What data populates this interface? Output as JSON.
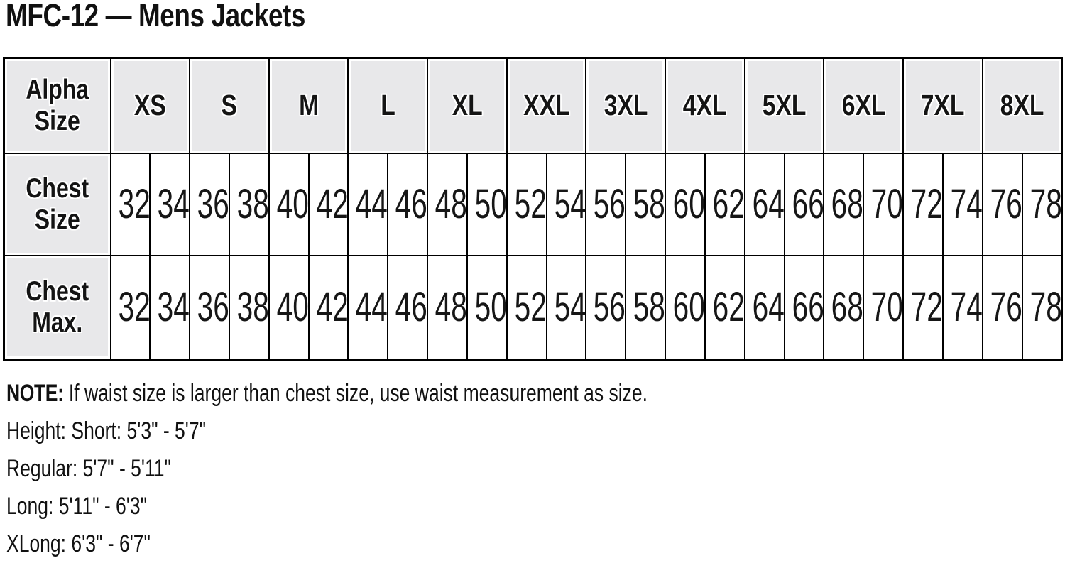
{
  "page": {
    "title": "MFC-12 — Mens Jackets"
  },
  "table": {
    "corner_header": "Alpha Size",
    "chest_size_header": "Chest Size",
    "chest_max_header": "Chest Max.",
    "alpha_sizes": [
      "XS",
      "S",
      "M",
      "L",
      "XL",
      "XXL",
      "3XL",
      "4XL",
      "5XL",
      "6XL",
      "7XL",
      "8XL"
    ],
    "chest_size": [
      "32",
      "34",
      "36",
      "38",
      "40",
      "42",
      "44",
      "46",
      "48",
      "50",
      "52",
      "54",
      "56",
      "58",
      "60",
      "62",
      "64",
      "66",
      "68",
      "70",
      "72",
      "74",
      "76",
      "78"
    ],
    "chest_max": [
      "32",
      "34",
      "36",
      "38",
      "40",
      "42",
      "44",
      "46",
      "48",
      "50",
      "52",
      "54",
      "56",
      "58",
      "60",
      "62",
      "64",
      "66",
      "68",
      "70",
      "72",
      "74",
      "76",
      "78"
    ]
  },
  "notes": {
    "note_label": "NOTE:",
    "note_text": " If waist size is larger than chest size, use waist measurement as size.",
    "lines": [
      "Height: Short: 5'3\" - 5'7\"",
      "Regular: 5'7\" - 5'11\"",
      "Long: 5'11\" - 6'3\"",
      "XLong: 6'3\" - 6'7\""
    ]
  },
  "colors": {
    "header_cell_background": "#e8e8ea",
    "border": "#000000",
    "text": "#111111",
    "cell_background": "#ffffff"
  }
}
